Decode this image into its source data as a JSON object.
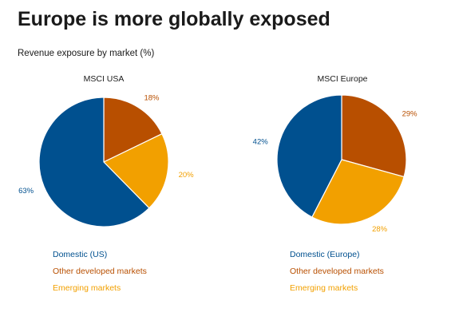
{
  "title": "Europe is more globally exposed",
  "subtitle": "Revenue exposure by market (%)",
  "colors": {
    "domestic": "#00508f",
    "other_developed": "#b84f00",
    "emerging": "#f2a000"
  },
  "chart_data": [
    {
      "type": "pie",
      "title": "MSCI USA",
      "slices": [
        {
          "label": "Other developed markets",
          "value": 18,
          "value_label": "18%",
          "color": "#b84f00"
        },
        {
          "label": "Emerging markets",
          "value": 20,
          "value_label": "20%",
          "color": "#f2a000"
        },
        {
          "label": "Domestic (US)",
          "value": 63,
          "value_label": "63%",
          "color": "#00508f"
        }
      ],
      "legend": [
        "Domestic (US)",
        "Other developed markets",
        "Emerging markets"
      ],
      "legend_colors": [
        "#00508f",
        "#b84f00",
        "#f2a000"
      ],
      "legend_placement": "bottom"
    },
    {
      "type": "pie",
      "title": "MSCI Europe",
      "slices": [
        {
          "label": "Other developed markets",
          "value": 29,
          "value_label": "29%",
          "color": "#b84f00"
        },
        {
          "label": "Emerging markets",
          "value": 28,
          "value_label": "28%",
          "color": "#f2a000"
        },
        {
          "label": "Domestic (Europe)",
          "value": 42,
          "value_label": "42%",
          "color": "#00508f"
        }
      ],
      "legend": [
        "Domestic (Europe)",
        "Other developed markets",
        "Emerging markets"
      ],
      "legend_colors": [
        "#00508f",
        "#b84f00",
        "#f2a000"
      ],
      "legend_placement": "bottom"
    }
  ]
}
